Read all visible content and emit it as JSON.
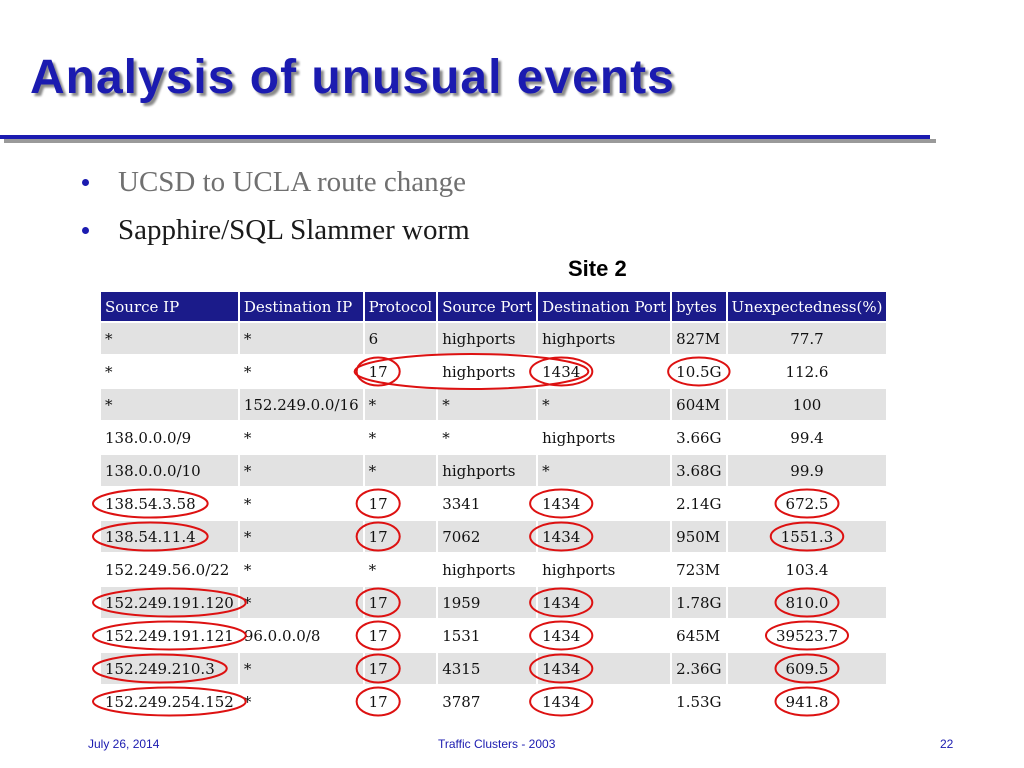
{
  "slide": {
    "title": "Analysis of unusual events",
    "bullets": [
      {
        "text": "UCSD to UCLA route change",
        "muted": true
      },
      {
        "text": "Sapphire/SQL Slammer worm",
        "muted": false
      }
    ],
    "site_label": "Site 2"
  },
  "table": {
    "headers": [
      "Source IP",
      "Destination IP",
      "Protocol",
      "Source Port",
      "Destination Port",
      "bytes",
      "Unexpectedness(%)"
    ],
    "rows": [
      [
        "*",
        "*",
        "6",
        "highports",
        "highports",
        "827M",
        "77.7"
      ],
      [
        "*",
        "*",
        "17",
        "highports",
        "1434",
        "10.5G",
        "112.6"
      ],
      [
        "*",
        "152.249.0.0/16",
        "*",
        "*",
        "*",
        "604M",
        "100"
      ],
      [
        "138.0.0.0/9",
        "*",
        "*",
        "*",
        "highports",
        "3.66G",
        "99.4"
      ],
      [
        "138.0.0.0/10",
        "*",
        "*",
        "highports",
        "*",
        "3.68G",
        "99.9"
      ],
      [
        "138.54.3.58",
        "*",
        "17",
        "3341",
        "1434",
        "2.14G",
        "672.5"
      ],
      [
        "138.54.11.4",
        "*",
        "17",
        "7062",
        "1434",
        "950M",
        "1551.3"
      ],
      [
        "152.249.56.0/22",
        "*",
        "*",
        "highports",
        "highports",
        "723M",
        "103.4"
      ],
      [
        "152.249.191.120",
        "*",
        "17",
        "1959",
        "1434",
        "1.78G",
        "810.0"
      ],
      [
        "152.249.191.121",
        "96.0.0.0/8",
        "17",
        "1531",
        "1434",
        "645M",
        "39523.7"
      ],
      [
        "152.249.210.3",
        "*",
        "17",
        "4315",
        "1434",
        "2.36G",
        "609.5"
      ],
      [
        "152.249.254.152",
        "*",
        "17",
        "3787",
        "1434",
        "1.53G",
        "941.8"
      ]
    ]
  },
  "highlight_color": "#dd1111",
  "footer": {
    "date": "July 26, 2014",
    "center": "Traffic Clusters -  2003",
    "page": "22"
  }
}
